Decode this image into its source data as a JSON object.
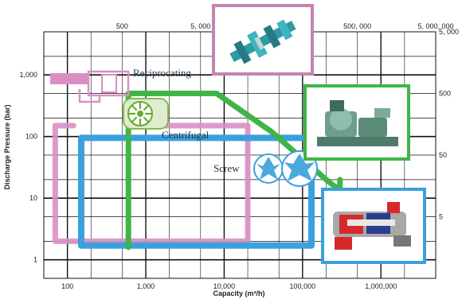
{
  "chart_data": {
    "type": "area",
    "xlabel": "Capacity (m³/h)",
    "ylabel": "Discharge Pressure (bar)",
    "x_scale": "log",
    "y_scale": "log",
    "xlim": [
      50,
      5000000
    ],
    "ylim": [
      0.5,
      5000
    ],
    "x_ticks": [
      {
        "value": 100,
        "label": "100"
      },
      {
        "value": 1000,
        "label": "1,000"
      },
      {
        "value": 10000,
        "label": "10,000"
      },
      {
        "value": 100000,
        "label": "100,000"
      },
      {
        "value": 1000000,
        "label": "1,000,000"
      }
    ],
    "y_ticks": [
      {
        "value": 1,
        "label": "1"
      },
      {
        "value": 10,
        "label": "10"
      },
      {
        "value": 100,
        "label": "100"
      },
      {
        "value": 1000,
        "label": "1,000"
      }
    ],
    "top_ticks": [
      {
        "value": 500,
        "label": "500"
      },
      {
        "value": 5000,
        "label": "5, 000"
      },
      {
        "value": 500000,
        "label": "500, 000"
      },
      {
        "value": 5000000,
        "label": "5, 000, 000"
      }
    ],
    "right_ticks": [
      {
        "value": 5,
        "label": "5"
      },
      {
        "value": 50,
        "label": "50"
      },
      {
        "value": 500,
        "label": "500"
      },
      {
        "value": 5000,
        "label": "5, 000"
      }
    ],
    "grid": true,
    "series": [
      {
        "name": "Reciprocating",
        "color": "#d98fc4",
        "region": {
          "x": [
            70,
            20000
          ],
          "y": [
            2,
            150
          ]
        }
      },
      {
        "name": "Centrifugal",
        "color": "#3ba0dd",
        "region": {
          "x": [
            150,
            130000
          ],
          "y": [
            1.7,
            95
          ]
        }
      },
      {
        "name": "Screw",
        "color": "#3fb547",
        "region": {
          "x": [
            600,
            3000000
          ],
          "y": [
            1.6,
            500
          ]
        }
      }
    ]
  },
  "colors": {
    "reciprocating": "#d98fc4",
    "centrifugal": "#3ba0dd",
    "screw": "#3fb547",
    "grid": "#111111"
  }
}
